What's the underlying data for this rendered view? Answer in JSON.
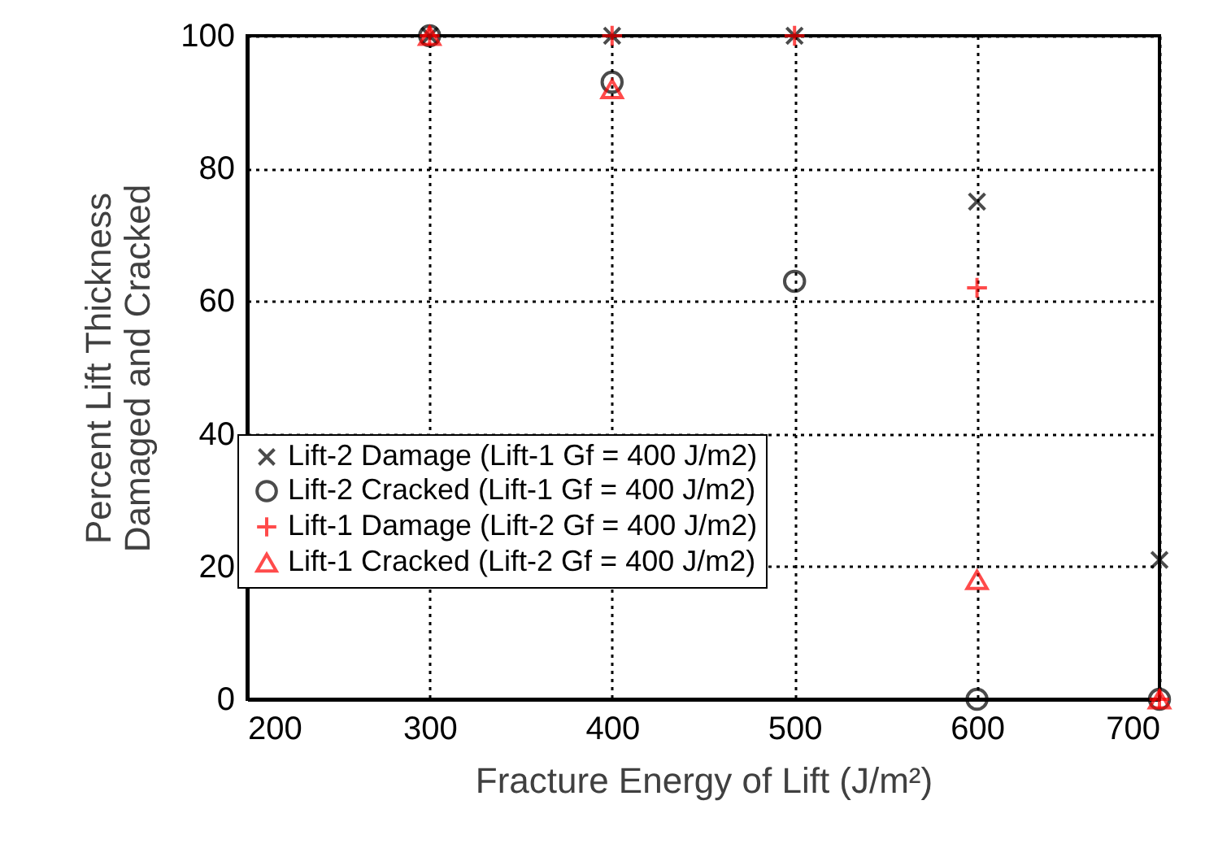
{
  "chart_data": {
    "type": "scatter",
    "xlabel": "Fracture Energy of Lift (J/m²)",
    "ylabel": "Percent Lift Thickness\nDamaged and Cracked",
    "x": [
      300,
      400,
      500,
      600,
      700
    ],
    "series": [
      {
        "name": "Lift-2 Damage (Lift-1 Gf = 400 J/m2)",
        "color": "#000000",
        "marker": "x",
        "values": [
          100,
          100,
          100,
          75,
          21
        ]
      },
      {
        "name": "Lift-2 Cracked (Lift-1 Gf = 400 J/m2)",
        "color": "#000000",
        "marker": "circle",
        "values": [
          100,
          93,
          63,
          0,
          0
        ]
      },
      {
        "name": "Lift-1 Damage (Lift-2 Gf = 400 J/m2)",
        "color": "#ff0000",
        "marker": "cross",
        "values": [
          100,
          100,
          100,
          62,
          0
        ]
      },
      {
        "name": "Lift-1 Cracked (Lift-2 Gf = 400 J/m2)",
        "color": "#ff0000",
        "marker": "triangle",
        "values": [
          100,
          92,
          null,
          18,
          0
        ]
      }
    ],
    "xlim": [
      200,
      700
    ],
    "xticks": [
      200,
      300,
      400,
      500,
      600,
      700
    ],
    "ylim": [
      0,
      100
    ],
    "yticks": [
      0,
      20,
      40,
      60,
      80,
      100
    ],
    "grid": true,
    "legend": "bottom left"
  }
}
